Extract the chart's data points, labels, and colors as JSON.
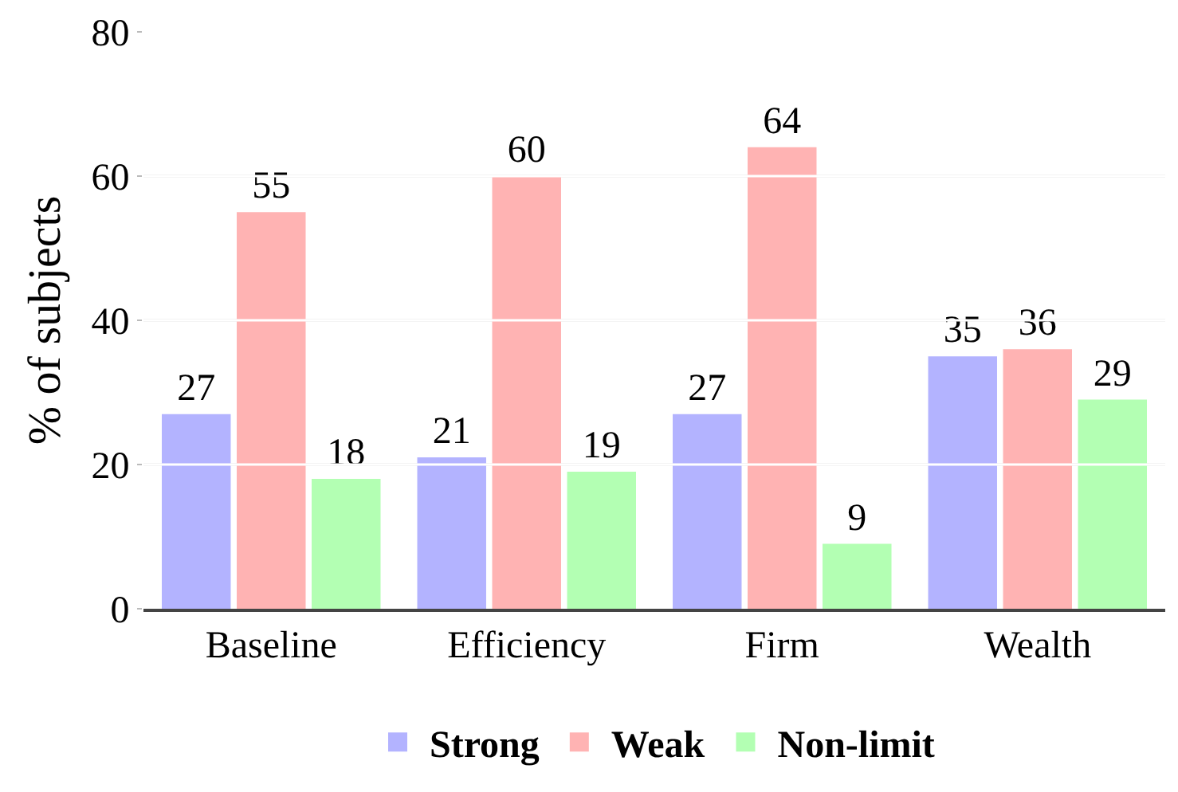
{
  "chart_data": {
    "type": "bar",
    "ylabel": "% of subjects",
    "categories": [
      "Baseline",
      "Efficiency",
      "Firm",
      "Wealth"
    ],
    "series": [
      {
        "name": "Strong",
        "color": "#b3b3ff",
        "values": [
          27,
          21,
          27,
          35
        ]
      },
      {
        "name": "Weak",
        "color": "#ffb3b3",
        "values": [
          55,
          60,
          64,
          36
        ]
      },
      {
        "name": "Non-limit",
        "color": "#b3ffb3",
        "values": [
          18,
          19,
          9,
          29
        ]
      }
    ],
    "ylim": [
      0,
      80
    ],
    "yticks": [
      0,
      20,
      40,
      60,
      80
    ],
    "grid": "y",
    "legend": "bottom",
    "data_labels": true
  }
}
